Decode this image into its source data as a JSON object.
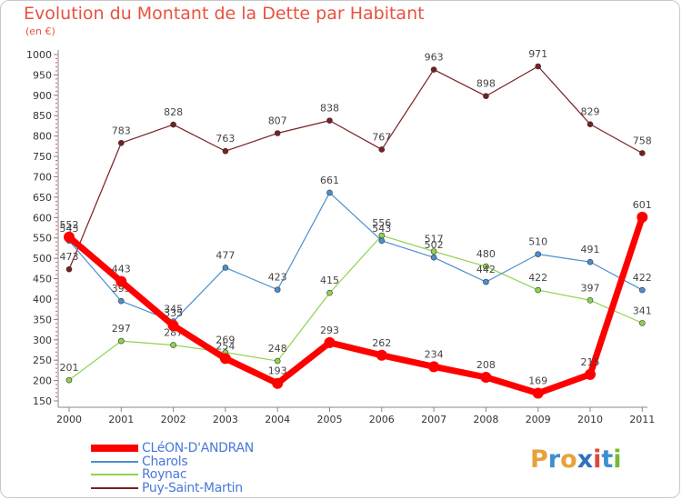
{
  "header": {
    "title": "Evolution du Montant de la Dette par Habitant",
    "unit": "(en €)"
  },
  "brand": {
    "letters": [
      "P",
      "r",
      "o",
      "x",
      "i",
      "t",
      "i"
    ],
    "colors": [
      "#e8a23a",
      "#3e8fd0",
      "#e8a23a",
      "#2f6fc0",
      "#d94a3a",
      "#3e8fd0",
      "#7ab83a"
    ]
  },
  "chart_data": {
    "type": "line",
    "x": [
      "2000",
      "2001",
      "2002",
      "2003",
      "2004",
      "2005",
      "2006",
      "2007",
      "2008",
      "2009",
      "2010",
      "2011"
    ],
    "ylim": [
      150,
      1000
    ],
    "yticks": [
      150,
      200,
      250,
      300,
      350,
      400,
      450,
      500,
      550,
      600,
      650,
      700,
      750,
      800,
      850,
      900,
      950,
      1000
    ],
    "grid": false,
    "legend_position": "bottom-left",
    "series": [
      {
        "name": "Puy-Saint-Martin",
        "color": "#7a1f1f",
        "values": [
          473,
          783,
          828,
          763,
          807,
          838,
          767,
          963,
          898,
          971,
          829,
          758
        ]
      },
      {
        "name": "Roynac",
        "color": "#8fd44f",
        "values": [
          201,
          297,
          287,
          269,
          248,
          415,
          556,
          517,
          480,
          422,
          397,
          341
        ]
      },
      {
        "name": "Charols",
        "color": "#4a90d0",
        "values": [
          543,
          395,
          345,
          477,
          423,
          661,
          543,
          502,
          442,
          510,
          491,
          422
        ]
      },
      {
        "name": "CLéON-D'ANDRAN",
        "color": "#ff0000",
        "values": [
          552,
          443,
          335,
          254,
          193,
          293,
          262,
          234,
          208,
          169,
          215,
          601
        ]
      }
    ]
  },
  "legend": [
    {
      "name": "CLéON-D'ANDRAN",
      "color": "#ff0000"
    },
    {
      "name": "Charols",
      "color": "#4a90d0"
    },
    {
      "name": "Roynac",
      "color": "#8fd44f"
    },
    {
      "name": "Puy-Saint-Martin",
      "color": "#7a1f1f"
    }
  ]
}
